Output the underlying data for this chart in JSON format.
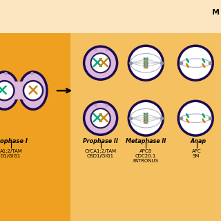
{
  "bg_dark_orange": "#F0A020",
  "bg_light_orange": "#F5C060",
  "bg_cream": "#FAE5C0",
  "cell_border": "#1A0A50",
  "cell_pink": "#DDB8DD",
  "cell_white": "#FFFFFF",
  "chr_teal": "#00A878",
  "chr_orange": "#CC8010",
  "spindle_col": "#B0B0C5",
  "dot_col": "#A090B0",
  "text_col": "#000000",
  "label_anaphase1": "ophase I",
  "label_prophase2": "Prophase II",
  "label_metaphase2": "Metaphase II",
  "label_anaphase2": "Anap",
  "gene_left1": "A1;2/TAM",
  "gene_left2": "D1/GIG1",
  "gene_mid1": "CYCA1;2/TAM",
  "gene_mid2": "OSD1/GIG1",
  "gene_right1": "APC8",
  "gene_right2": "CDC20.1",
  "gene_right3": "PATRONUS",
  "gene_far1": "APC",
  "gene_far2": "SM",
  "title_letter": "M"
}
